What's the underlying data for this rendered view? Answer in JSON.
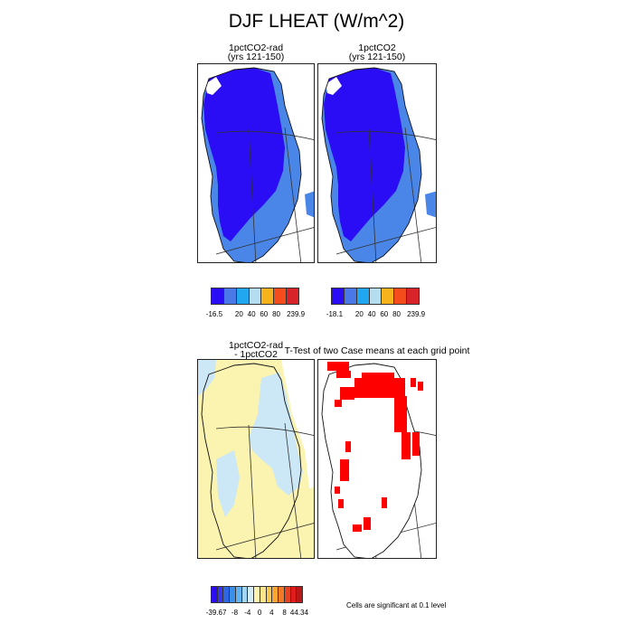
{
  "title": "DJF LHEAT (W/m^2)",
  "panels": {
    "p1": {
      "title_line1": "1pctCO2-rad",
      "title_line2": "(yrs 121-150)"
    },
    "p2": {
      "title_line1": "1pctCO2",
      "title_line2": "(yrs 121-150)"
    },
    "p3": {
      "title_line1": "1pctCO2-rad",
      "title_line2": "- 1pctCO2"
    },
    "p4": {
      "title": "T-Test of two Case means at each grid point"
    }
  },
  "colorbars": {
    "cb1": {
      "colors": [
        "#2a0cf5",
        "#4a78e6",
        "#21a6f0",
        "#b4def0",
        "#f7b31c",
        "#f44c1a",
        "#d8232a"
      ],
      "labels": [
        "-16.5",
        "20",
        "40",
        "60",
        "80",
        "239.9"
      ]
    },
    "cb2": {
      "colors": [
        "#2a0cf5",
        "#4a78e6",
        "#21a6f0",
        "#b4def0",
        "#f7b31c",
        "#f44c1a",
        "#d8232a"
      ],
      "labels": [
        "-18.1",
        "20",
        "40",
        "60",
        "80",
        "239.9"
      ]
    },
    "cb3": {
      "colors": [
        "#2a0cf5",
        "#3b36f0",
        "#2f66e6",
        "#3a8fe8",
        "#62b3f0",
        "#a3d6f2",
        "#d3edf7",
        "#fcf3b0",
        "#fbe48c",
        "#f9c94f",
        "#f8a534",
        "#f27a27",
        "#e64420",
        "#e11c1c",
        "#bb1919"
      ],
      "labels": [
        "-39.67",
        "-8",
        "-4",
        "0",
        "4",
        "8",
        "44.34"
      ]
    }
  },
  "significance_note": "Cells are significant at 0.1 level",
  "map_colors": {
    "dark_blue": "#2a0cf5",
    "mid_blue": "#4a86e8",
    "pale_yellow": "#fbf3b0",
    "pale_blue": "#cce8f7",
    "significant_red": "#ff0000"
  }
}
